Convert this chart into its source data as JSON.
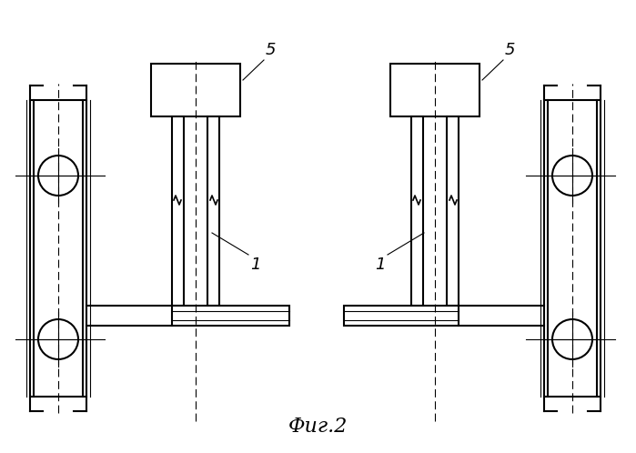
{
  "background": "#ffffff",
  "line_color": "#000000",
  "lw": 1.5,
  "lw_thin": 0.8,
  "fig_title": "Фиг.2",
  "title_fontsize": 16,
  "label_5_left": "5",
  "label_1_left": "1",
  "label_5_right": "5",
  "label_1_right": "1"
}
